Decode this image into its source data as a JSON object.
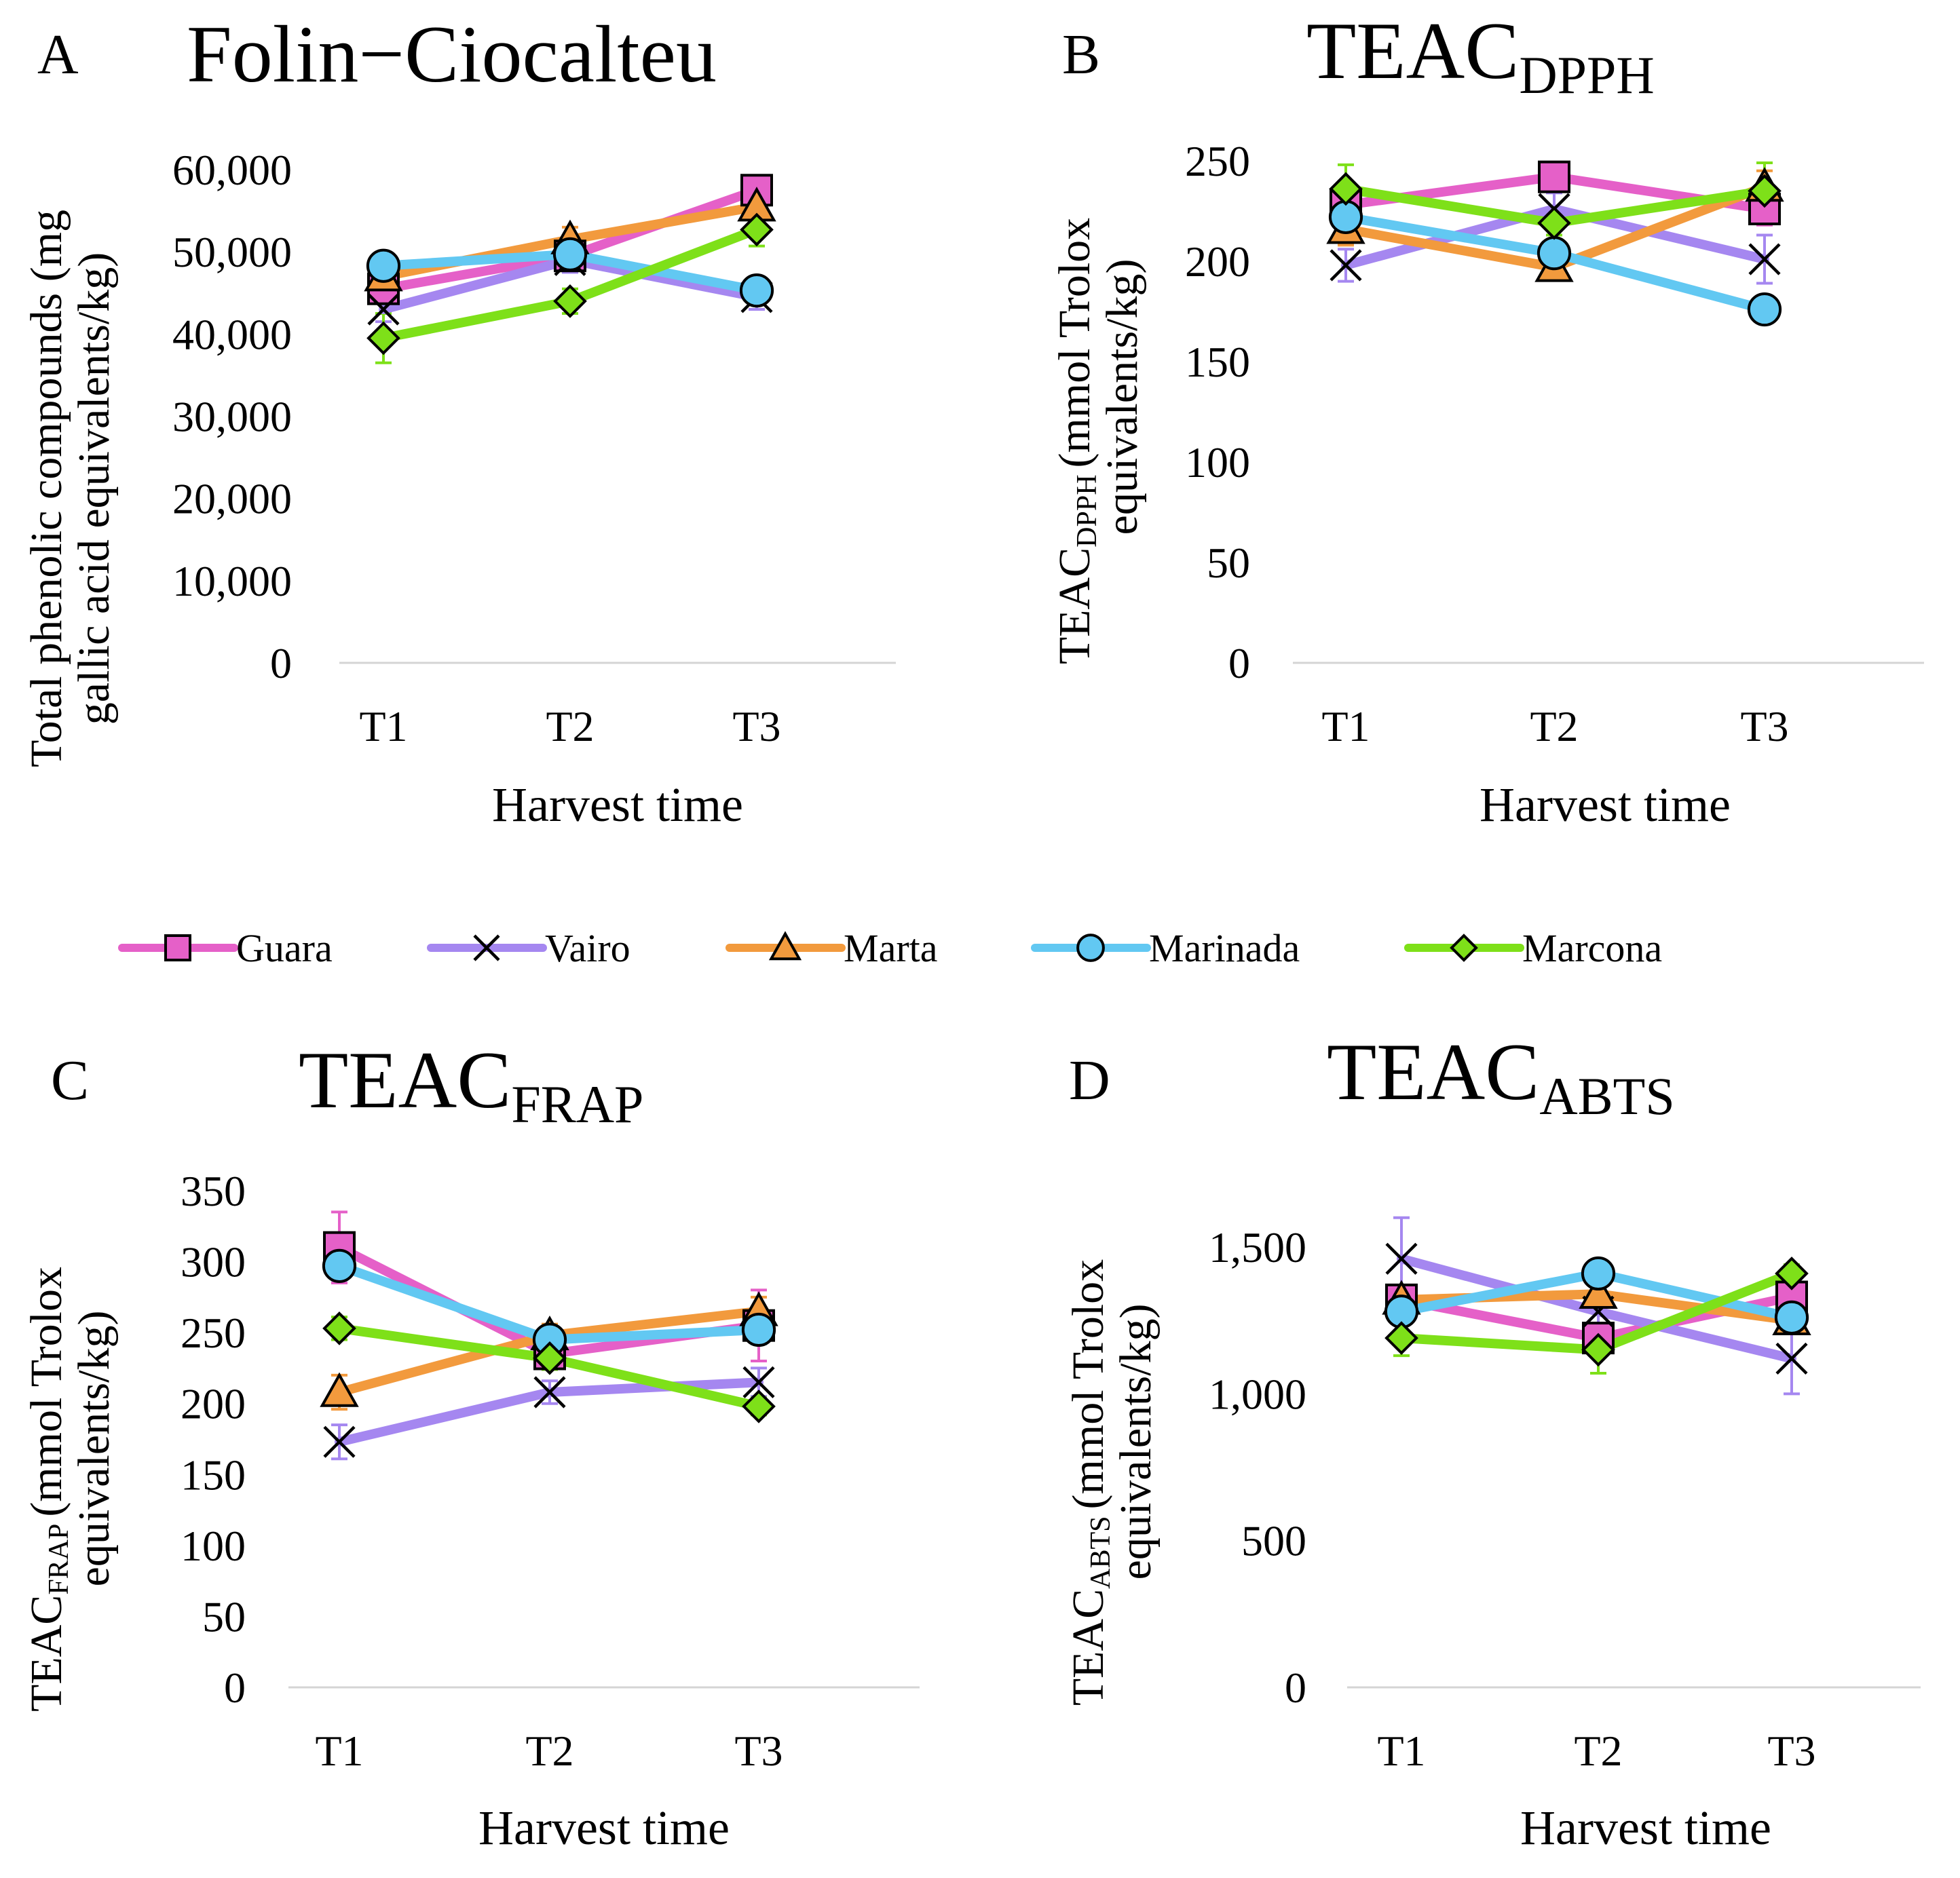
{
  "chart_data": [
    {
      "type": "line",
      "panel_letter": "A",
      "title": "Folin−Ciocalteu",
      "title_sub": "",
      "categories": [
        "T1",
        "T2",
        "T3"
      ],
      "xlabel": "Harvest time",
      "ylabel_lines": [
        "Total phenolic compounds (mg",
        "gallic acid equivalents/kg)"
      ],
      "ylabel_sub": "",
      "ylim": [
        0,
        60000
      ],
      "yticks": [
        0,
        10000,
        20000,
        30000,
        40000,
        50000,
        60000
      ],
      "ytick_labels": [
        "0",
        "10,000",
        "20,000",
        "30,000",
        "40,000",
        "50,000",
        "60,000"
      ],
      "series": [
        {
          "name": "Guara",
          "values": [
            45500,
            49500,
            57500
          ],
          "errors": [
            1500,
            1500,
            1500
          ]
        },
        {
          "name": "Vairo",
          "values": [
            43000,
            49000,
            44500
          ],
          "errors": [
            1500,
            1500,
            1500
          ]
        },
        {
          "name": "Marta",
          "values": [
            47000,
            51500,
            55500
          ],
          "errors": [
            1500,
            1500,
            1500
          ]
        },
        {
          "name": "Marinada",
          "values": [
            48300,
            49700,
            45300
          ],
          "errors": [
            1500,
            1500,
            1500
          ]
        },
        {
          "name": "Marcona",
          "values": [
            39500,
            44000,
            52700
          ],
          "errors": [
            3000,
            1500,
            2000
          ]
        }
      ]
    },
    {
      "type": "line",
      "panel_letter": "B",
      "title": "TEAC",
      "title_sub": "DPPH",
      "categories": [
        "T1",
        "T2",
        "T3"
      ],
      "xlabel": "Harvest time",
      "ylabel_lines": [
        "(mmol Trolox",
        "equivalents/kg)"
      ],
      "ylabel_prefix": "TEAC",
      "ylabel_sub": "DPPH",
      "ylim": [
        0,
        250
      ],
      "yticks": [
        0,
        50,
        100,
        150,
        200,
        250
      ],
      "ytick_labels": [
        "0",
        "50",
        "100",
        "150",
        "200",
        "250"
      ],
      "series": [
        {
          "name": "Guara",
          "values": [
            228,
            242,
            226
          ],
          "errors": [
            8,
            6,
            8
          ]
        },
        {
          "name": "Vairo",
          "values": [
            198,
            226,
            201
          ],
          "errors": [
            8,
            8,
            12
          ]
        },
        {
          "name": "Marta",
          "values": [
            216,
            197,
            237
          ],
          "errors": [
            8,
            6,
            8
          ]
        },
        {
          "name": "Marinada",
          "values": [
            222,
            204,
            176
          ],
          "errors": [
            6,
            6,
            4
          ]
        },
        {
          "name": "Marcona",
          "values": [
            236,
            219,
            235
          ],
          "errors": [
            12,
            6,
            14
          ]
        }
      ]
    },
    {
      "type": "line",
      "panel_letter": "C",
      "title": "TEAC",
      "title_sub": "FRAP",
      "categories": [
        "T1",
        "T2",
        "T3"
      ],
      "xlabel": "Harvest time",
      "ylabel_lines": [
        "(mmol Trolox",
        "equivalents/kg)"
      ],
      "ylabel_prefix": "TEAC",
      "ylabel_sub": "FRAP",
      "ylim": [
        0,
        350
      ],
      "yticks": [
        0,
        50,
        100,
        150,
        200,
        250,
        300,
        350
      ],
      "ytick_labels": [
        "0",
        "50",
        "100",
        "150",
        "200",
        "250",
        "300",
        "350"
      ],
      "series": [
        {
          "name": "Guara",
          "values": [
            310,
            235,
            255
          ],
          "errors": [
            25,
            8,
            25
          ]
        },
        {
          "name": "Vairo",
          "values": [
            173,
            208,
            215
          ],
          "errors": [
            12,
            8,
            10
          ]
        },
        {
          "name": "Marta",
          "values": [
            208,
            248,
            265
          ],
          "errors": [
            12,
            8,
            10
          ]
        },
        {
          "name": "Marinada",
          "values": [
            297,
            245,
            252
          ],
          "errors": [
            10,
            8,
            10
          ]
        },
        {
          "name": "Marcona",
          "values": [
            253,
            232,
            198
          ],
          "errors": [
            8,
            8,
            6
          ]
        }
      ]
    },
    {
      "type": "line",
      "panel_letter": "D",
      "title": "TEAC",
      "title_sub": "ABTS",
      "categories": [
        "T1",
        "T2",
        "T3"
      ],
      "xlabel": "Harvest time",
      "ylabel_lines": [
        "(mmol Trolox",
        "equivalents/kg)"
      ],
      "ylabel_prefix": "TEAC",
      "ylabel_sub": "ABTS",
      "ylim": [
        0,
        1500
      ],
      "yticks": [
        0,
        500,
        1000,
        1500
      ],
      "ytick_labels": [
        "0",
        "500",
        "1,000",
        "1,500"
      ],
      "series": [
        {
          "name": "Guara",
          "values": [
            1320,
            1190,
            1330
          ],
          "errors": [
            30,
            30,
            30
          ]
        },
        {
          "name": "Vairo",
          "values": [
            1460,
            1280,
            1120
          ],
          "errors": [
            140,
            40,
            120
          ]
        },
        {
          "name": "Marta",
          "values": [
            1320,
            1340,
            1250
          ],
          "errors": [
            30,
            30,
            30
          ]
        },
        {
          "name": "Marinada",
          "values": [
            1280,
            1410,
            1260
          ],
          "errors": [
            30,
            30,
            30
          ]
        },
        {
          "name": "Marcona",
          "values": [
            1190,
            1150,
            1410
          ],
          "errors": [
            60,
            80,
            30
          ]
        }
      ]
    }
  ],
  "legend": [
    {
      "name": "Guara",
      "color": "#e560c8",
      "marker": "square"
    },
    {
      "name": "Vairo",
      "color": "#a587f0",
      "marker": "x"
    },
    {
      "name": "Marta",
      "color": "#f29a3d",
      "marker": "triangle"
    },
    {
      "name": "Marinada",
      "color": "#62c8f2",
      "marker": "circle"
    },
    {
      "name": "Marcona",
      "color": "#7ee019",
      "marker": "diamond"
    }
  ]
}
